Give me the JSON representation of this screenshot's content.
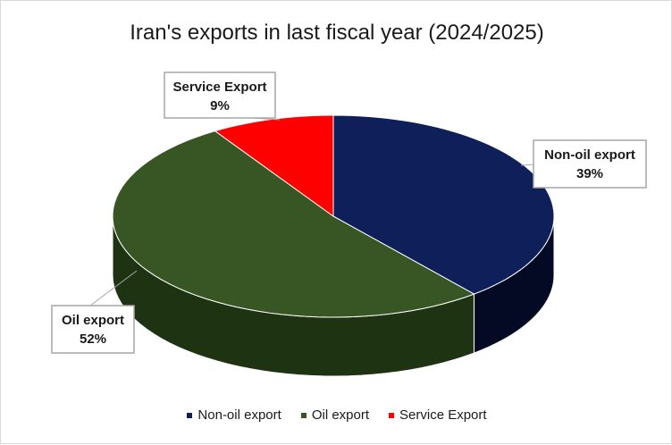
{
  "chart_data": {
    "type": "pie",
    "title": "Iran's exports in last fiscal year (2024/2025)",
    "categories": [
      "Non-oil export",
      "Oil export",
      "Service Export"
    ],
    "values": [
      39,
      52,
      9
    ],
    "value_labels": [
      "39%",
      "52%",
      "9%"
    ],
    "colors": [
      "#0e1f5a",
      "#375623",
      "#ff0000"
    ],
    "side_colors": [
      "#040a24",
      "#1d3312",
      "#8a0000"
    ],
    "legend_position": "bottom",
    "style": "3d"
  }
}
